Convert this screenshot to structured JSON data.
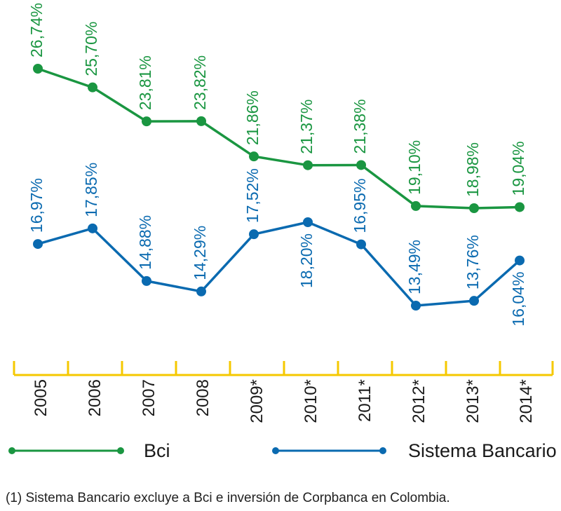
{
  "chart_data": {
    "type": "line",
    "categories": [
      "2005",
      "2006",
      "2007",
      "2008",
      "2009*",
      "2010*",
      "2011*",
      "2012*",
      "2013*",
      "2014*"
    ],
    "series": [
      {
        "name": "Bci",
        "color": "#1a9641",
        "values": [
          26.74,
          25.7,
          23.81,
          23.82,
          21.86,
          21.37,
          21.38,
          19.1,
          18.98,
          19.04
        ],
        "labels": [
          "26,74%",
          "25,70%",
          "23,81%",
          "23,82%",
          "21,86%",
          "21,37%",
          "21,38%",
          "19,10%",
          "18,98%",
          "19,04%"
        ]
      },
      {
        "name": "Sistema Bancario",
        "color": "#0a6ab0",
        "values": [
          16.97,
          17.85,
          14.88,
          14.29,
          17.52,
          18.2,
          16.95,
          13.49,
          13.76,
          16.04
        ],
        "labels": [
          "16,97%",
          "17,85%",
          "14,88%",
          "14,29%",
          "17,52%",
          "18,20%",
          "16,95%",
          "13,49%",
          "13,76%",
          "16,04%"
        ]
      }
    ],
    "axis_color": "#f5c800",
    "legend_placement": "bottom",
    "grid": false
  },
  "footnote": "(1) Sistema Bancario excluye a Bci e inversión de Corpbanca en Colombia."
}
